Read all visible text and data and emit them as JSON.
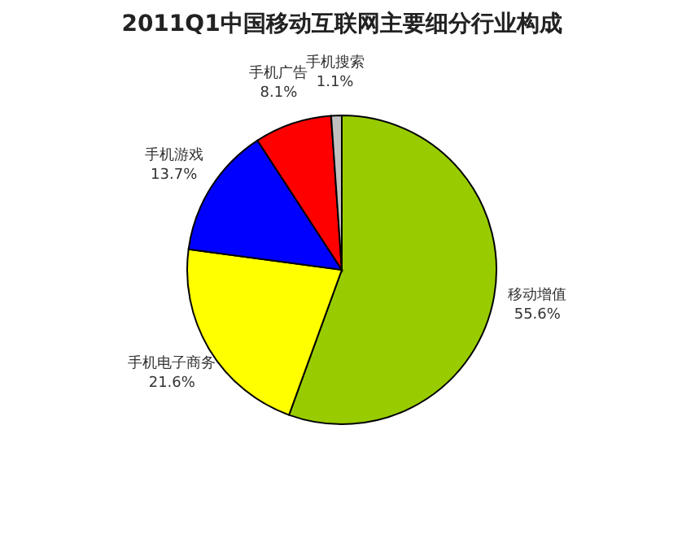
{
  "chart_data": {
    "type": "pie",
    "title": "2011Q1中国移动互联网主要细分行业构成",
    "categories": [
      "移动增值",
      "手机电子商务",
      "手机游戏",
      "手机广告",
      "手机搜索"
    ],
    "values": [
      55.6,
      21.6,
      13.7,
      8.1,
      1.1
    ],
    "colors": [
      "#99cc00",
      "#ffff00",
      "#0000ff",
      "#ff0000",
      "#c0c0c0"
    ],
    "value_labels": [
      "55.6%",
      "21.6%",
      "13.7%",
      "8.1%",
      "1.1%"
    ],
    "legend": false
  }
}
